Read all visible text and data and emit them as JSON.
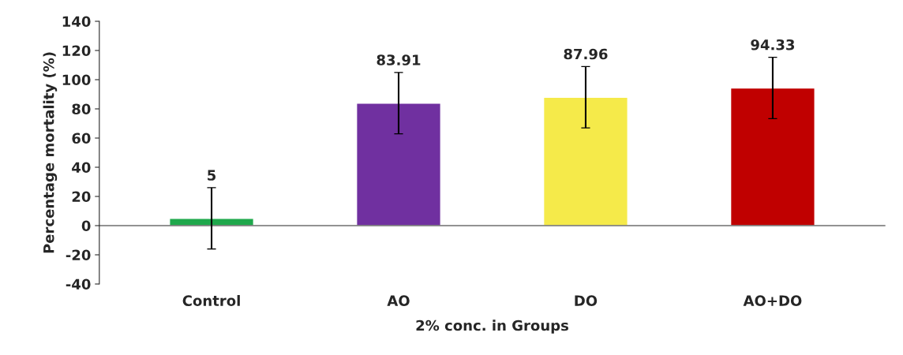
{
  "chart_data": {
    "type": "bar",
    "xlabel": "2% conc. in Groups",
    "ylabel": "Percentage mortality (%)",
    "categories": [
      "Control",
      "AO",
      "DO",
      "AO+DO"
    ],
    "values": [
      5,
      83.91,
      87.96,
      94.33
    ],
    "colors": [
      "#1fa84c",
      "#7030a0",
      "#f5ea4a",
      "#c00000"
    ],
    "errors": [
      21,
      21,
      21,
      21
    ],
    "data_labels": true,
    "ylim": [
      -40,
      140
    ],
    "yticks": [
      -40,
      -20,
      0,
      20,
      40,
      60,
      80,
      100,
      120,
      140
    ],
    "legend": false
  }
}
